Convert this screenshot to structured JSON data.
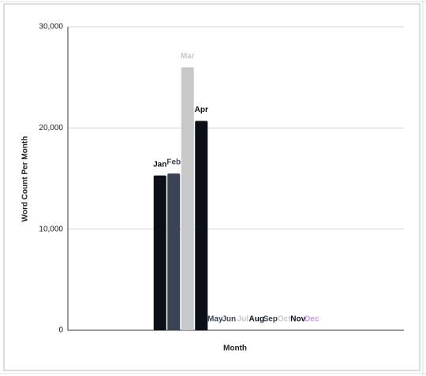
{
  "chart_data": {
    "type": "bar",
    "x_label": "Month",
    "y_label": "Word Count Per Month",
    "categories": [
      null
    ],
    "series": [
      {
        "name": "Jan",
        "color": "#0b0f17",
        "values": [
          15300
        ]
      },
      {
        "name": "Feb",
        "color": "#3b4455",
        "values": [
          15500
        ]
      },
      {
        "name": "Mar",
        "color": "#c8c8c8",
        "values": [
          26000
        ]
      },
      {
        "name": "Apr",
        "color": "#0b0f17",
        "values": [
          20700
        ]
      },
      {
        "name": "May",
        "color": "#3b4455",
        "values": [
          0
        ]
      },
      {
        "name": "Jun",
        "color": "#3b4455",
        "values": [
          0
        ]
      },
      {
        "name": "Jul",
        "color": "#c8c8c8",
        "values": [
          0
        ]
      },
      {
        "name": "Aug",
        "color": "#0b0f17",
        "values": [
          0
        ]
      },
      {
        "name": "Sep",
        "color": "#3b4455",
        "values": [
          0
        ]
      },
      {
        "name": "Oct",
        "color": "#c8c8c8",
        "values": [
          0
        ]
      },
      {
        "name": "Nov",
        "color": "#0b0f17",
        "values": [
          0
        ]
      },
      {
        "name": "Dec",
        "color": "#c79cf0",
        "values": [
          0
        ]
      }
    ],
    "ylim": [
      0,
      30000
    ],
    "yticks": [
      0,
      {
        "value": 10000,
        "label": "10,000"
      },
      {
        "value": 20000,
        "label": "20,000"
      },
      {
        "value": 30000,
        "label": "30,000"
      }
    ],
    "grid": true
  }
}
